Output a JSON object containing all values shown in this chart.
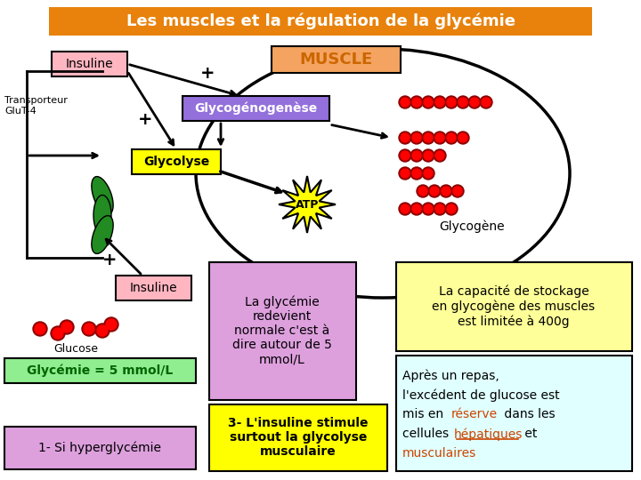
{
  "title": "Les muscles et la régulation de la glycémie",
  "title_bg": "#E8820C",
  "title_fg": "white",
  "muscle_label": "MUSCLE",
  "muscle_label_bg": "#F4A460",
  "insuline_label": "Insuline",
  "insuline_bg": "#FFB6C1",
  "glycogenogenese_label": "Glycogénogenèse",
  "glycogenogenese_bg": "#9370DB",
  "glycolyse_label": "Glycolyse",
  "glycolyse_bg": "#FFFF00",
  "atp_label": "ATP",
  "atp_bg": "#FFFF00",
  "glycogene_label": "Glycogène",
  "transporteur_label": "Transporteur\nGluT-4",
  "glucose_label": "Glucose",
  "glycemie_label": "Glycémie = 5 mmol/L",
  "glycemie_bg": "#90EE90",
  "hyperglycemie_label": "1- Si hyperglycémie",
  "hyperglycemie_bg": "#DDA0DD",
  "note1_label": "La glycémie\nredevient\nnormale c'est à\ndire autour de 5\nmmol/L",
  "note1_bg": "#DDA0DD",
  "note2_label": "La capacité de stockage\nen glycogène des muscles\nest limitée à 400g",
  "note2_bg": "#FFFF99",
  "note3_label": "3- L'insuline stimule\nsurtout la glycolyse\nmusculaire",
  "note3_bg": "#FFFF00",
  "note4_line1": "Après un repas,",
  "note4_line2": "l'excédent de glucose est",
  "note4_line3_pre": "mis en ",
  "note4_line3_red": "réserve",
  "note4_line3_post": " dans les",
  "note4_line4_pre": "cellules ",
  "note4_line4_red": "hépatiques",
  "note4_line4_post": " et",
  "note4_line5_red": "musculaires",
  "note4_bg": "#E0FFFF",
  "bg_color": "white"
}
